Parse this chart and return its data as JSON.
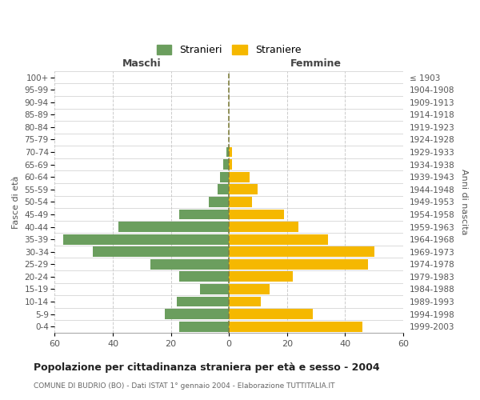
{
  "age_groups": [
    "100+",
    "95-99",
    "90-94",
    "85-89",
    "80-84",
    "75-79",
    "70-74",
    "65-69",
    "60-64",
    "55-59",
    "50-54",
    "45-49",
    "40-44",
    "35-39",
    "30-34",
    "25-29",
    "20-24",
    "15-19",
    "10-14",
    "5-9",
    "0-4"
  ],
  "birth_years": [
    "≤ 1903",
    "1904-1908",
    "1909-1913",
    "1914-1918",
    "1919-1923",
    "1924-1928",
    "1929-1933",
    "1934-1938",
    "1939-1943",
    "1944-1948",
    "1949-1953",
    "1954-1958",
    "1959-1963",
    "1964-1968",
    "1969-1973",
    "1974-1978",
    "1979-1983",
    "1984-1988",
    "1989-1993",
    "1994-1998",
    "1999-2003"
  ],
  "maschi": [
    0,
    0,
    0,
    0,
    0,
    0,
    1,
    2,
    3,
    4,
    7,
    17,
    38,
    57,
    47,
    27,
    17,
    10,
    18,
    22,
    17
  ],
  "femmine": [
    0,
    0,
    0,
    0,
    0,
    0,
    1,
    1,
    7,
    10,
    8,
    19,
    24,
    34,
    50,
    48,
    22,
    14,
    11,
    29,
    46
  ],
  "maschi_color": "#6b9e5e",
  "femmine_color": "#f5b800",
  "grid_color": "#cccccc",
  "dashed_line_color": "#808040",
  "title": "Popolazione per cittadinanza straniera per età e sesso - 2004",
  "subtitle": "COMUNE DI BUDRIO (BO) - Dati ISTAT 1° gennaio 2004 - Elaborazione TUTTITALIA.IT",
  "xlabel_left": "Maschi",
  "xlabel_right": "Femmine",
  "ylabel_left": "Fasce di età",
  "ylabel_right": "Anni di nascita",
  "legend_maschi": "Stranieri",
  "legend_femmine": "Straniere",
  "xlim": 60,
  "background_color": "#ffffff"
}
